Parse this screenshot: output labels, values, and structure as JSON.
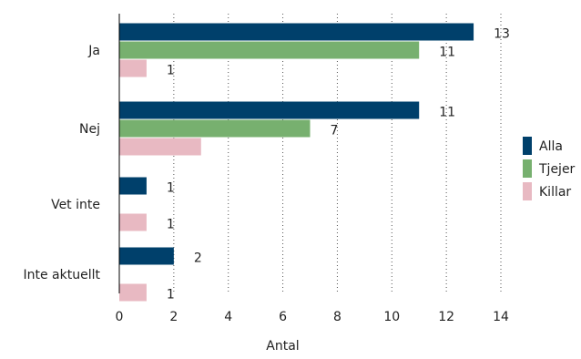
{
  "chart_data": {
    "type": "bar",
    "orientation": "horizontal",
    "categories": [
      "Ja",
      "Nej",
      "Vet inte",
      "Inte aktuellt"
    ],
    "series": [
      {
        "name": "Alla",
        "color": "#00406b",
        "values": [
          13,
          11,
          1,
          2
        ]
      },
      {
        "name": "Tjejer",
        "color": "#77b06f",
        "values": [
          11,
          7,
          null,
          null
        ]
      },
      {
        "name": "Killar",
        "color": "#e8b9c2",
        "values": [
          1,
          3,
          1,
          1
        ]
      }
    ],
    "data_labels": [
      [
        "13",
        "11",
        "1",
        "2"
      ],
      [
        "11",
        "7",
        "",
        ""
      ],
      [
        "1",
        "",
        "1",
        "1"
      ]
    ],
    "xlabel": "Antal",
    "ylabel": "",
    "xlim": [
      0,
      14
    ],
    "xticks": [
      0,
      2,
      4,
      6,
      8,
      10,
      12,
      14
    ],
    "grid": "vertical-dotted",
    "legend_position": "right"
  }
}
